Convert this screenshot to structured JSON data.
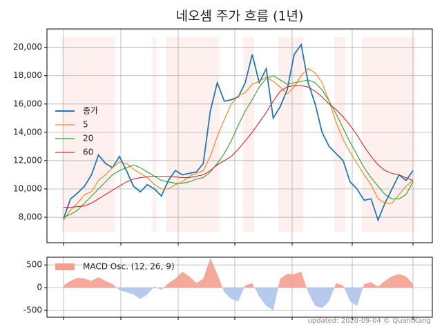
{
  "chart_data": [
    {
      "type": "line",
      "title": "네오셈 주가 흐름 (1년)",
      "series": [
        {
          "name": "종가",
          "color": "#1f77b4",
          "values": [
            7900,
            9300,
            9700,
            10200,
            11000,
            12400,
            11800,
            11500,
            12300,
            11300,
            10200,
            9800,
            10300,
            10000,
            9500,
            10600,
            11300,
            11000,
            11100,
            11200,
            11800,
            15500,
            17500,
            16200,
            16300,
            16500,
            17500,
            19500,
            17500,
            18500,
            15000,
            15800,
            17000,
            19500,
            20200,
            17500,
            16000,
            14000,
            13000,
            12500,
            12000,
            10500,
            10000,
            9200,
            9300,
            7800,
            9000,
            10000,
            11000,
            10600,
            11300
          ]
        },
        {
          "name": "5",
          "color": "#ff7f0e",
          "values": [
            7800,
            8500,
            9000,
            9600,
            9800,
            10600,
            11000,
            11500,
            11900,
            11800,
            11400,
            11100,
            10800,
            10300,
            10000,
            10000,
            10300,
            10500,
            10900,
            11100,
            11300,
            12300,
            13700,
            14900,
            16000,
            16600,
            16800,
            17400,
            17600,
            17900,
            17600,
            17200,
            16700,
            17200,
            18000,
            18500,
            18200,
            17500,
            16200,
            14700,
            13500,
            12600,
            11800,
            11000,
            10300,
            9300,
            9000,
            9000,
            9600,
            10200,
            10600
          ]
        },
        {
          "name": "20",
          "color": "#2ca02c",
          "values": [
            8000,
            8200,
            8500,
            9000,
            9500,
            10000,
            10500,
            11000,
            11300,
            11500,
            11700,
            11500,
            11200,
            10900,
            10600,
            10500,
            10400,
            10400,
            10500,
            10700,
            10800,
            11200,
            11800,
            12500,
            13400,
            14500,
            15500,
            16300,
            17200,
            17800,
            18000,
            17700,
            17400,
            17500,
            17600,
            17700,
            17500,
            17000,
            16200,
            15300,
            14300,
            13300,
            12400,
            11500,
            10800,
            10200,
            9600,
            9300,
            9300,
            9600,
            10500
          ]
        },
        {
          "name": "60",
          "color": "#d62728",
          "values": [
            8700,
            8700,
            8750,
            8800,
            9000,
            9300,
            9600,
            9900,
            10200,
            10500,
            10700,
            10800,
            10850,
            10900,
            10900,
            10900,
            10850,
            10800,
            10800,
            10900,
            11000,
            11300,
            11700,
            12000,
            12300,
            12800,
            13400,
            14000,
            14700,
            15400,
            16200,
            16900,
            17200,
            17300,
            17300,
            17200,
            16900,
            16500,
            16000,
            15600,
            15100,
            14500,
            13800,
            13000,
            12300,
            11700,
            11300,
            11100,
            11000,
            10800,
            10600
          ]
        }
      ],
      "ylim": [
        6200,
        21300
      ],
      "yticks": [
        {
          "value": 8000,
          "label": "8,000"
        },
        {
          "value": 10000,
          "label": "10,000"
        },
        {
          "value": 12000,
          "label": "12,000"
        },
        {
          "value": 14000,
          "label": "14,000"
        },
        {
          "value": 16000,
          "label": "16,000"
        },
        {
          "value": 18000,
          "label": "18,000"
        },
        {
          "value": 20000,
          "label": "20,000"
        }
      ],
      "grid": true,
      "legend": "center left"
    },
    {
      "type": "area",
      "series": [
        {
          "name": "MACD Osc. (12, 26, 9)",
          "color": "#f4a08f",
          "negative_color": "#aec4ee",
          "values": [
            50,
            150,
            220,
            200,
            150,
            230,
            150,
            80,
            -50,
            -100,
            -150,
            -250,
            -150,
            30,
            -50,
            100,
            200,
            350,
            250,
            100,
            200,
            650,
            300,
            -100,
            -250,
            -300,
            50,
            100,
            -200,
            -400,
            -500,
            200,
            300,
            300,
            350,
            -100,
            -400,
            -450,
            -300,
            100,
            50,
            -300,
            -400,
            80,
            120,
            20,
            150,
            250,
            300,
            250,
            80
          ]
        }
      ],
      "ylim": [
        -650,
        670
      ],
      "yticks": [
        -500,
        0,
        500
      ],
      "grid": true,
      "legend": "upper left"
    }
  ],
  "footer": "updated: 2020-09-04 © QuantKang"
}
